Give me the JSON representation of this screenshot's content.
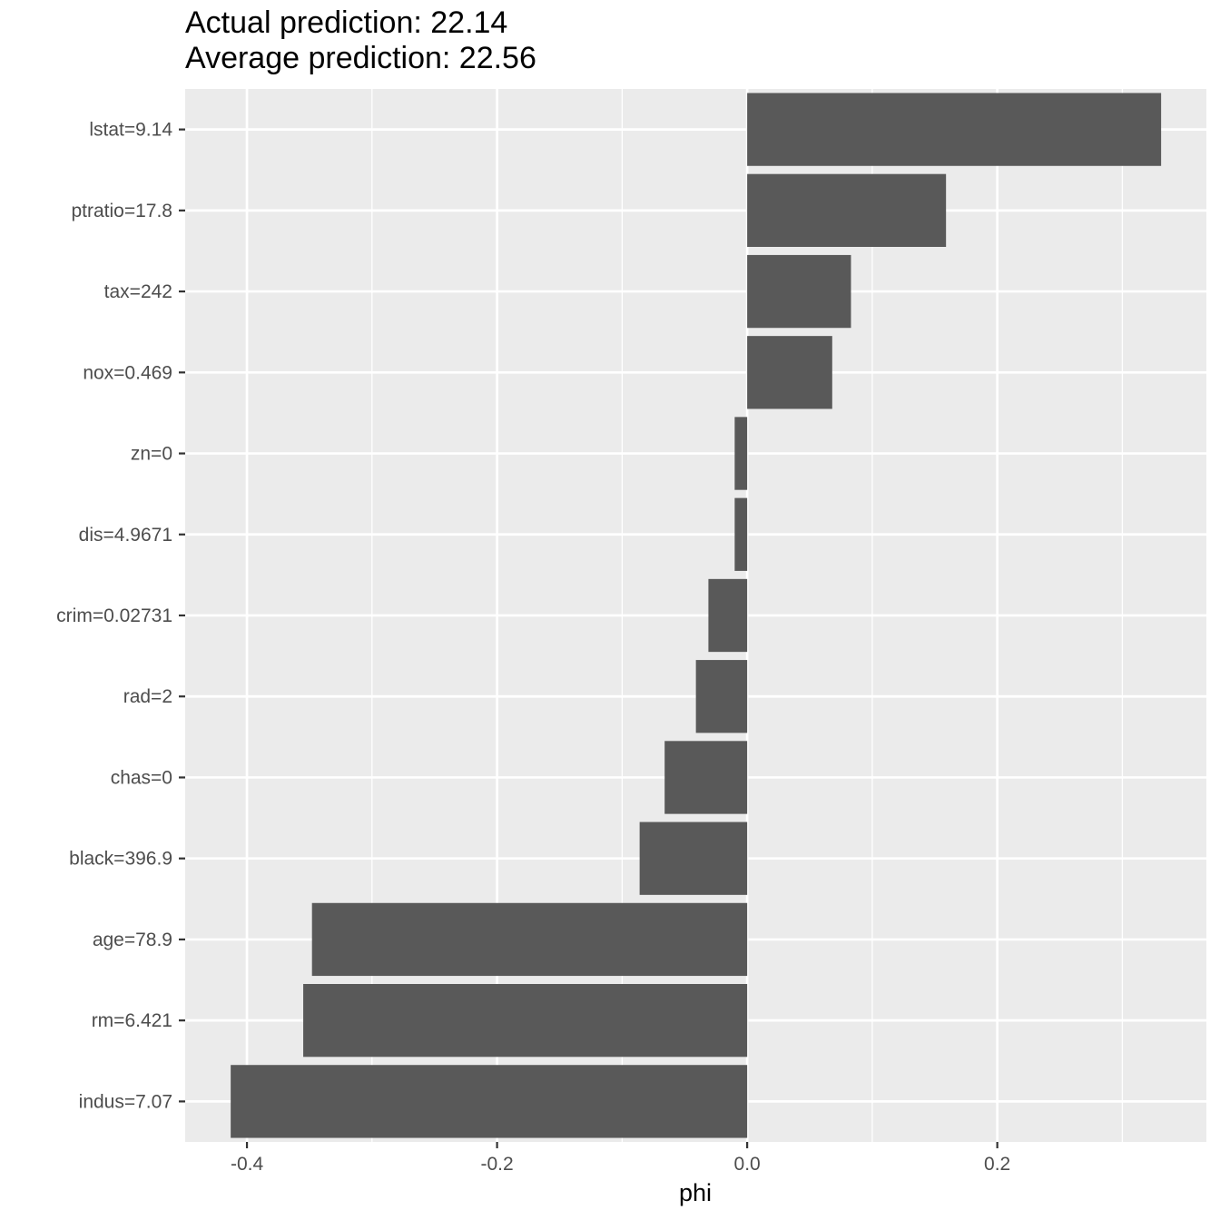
{
  "chart_data": {
    "type": "bar",
    "orientation": "horizontal",
    "title": "Actual prediction: 22.14",
    "subtitle": "Average prediction: 22.56",
    "xlabel": "phi",
    "ylabel": "",
    "xlim": [
      -0.4494,
      0.3672
    ],
    "xticks": [
      -0.4,
      -0.2,
      0.0,
      0.2
    ],
    "xtick_labels": [
      "-0.4",
      "-0.2",
      "0.0",
      "0.2"
    ],
    "grid": true,
    "legend": "none",
    "categories": [
      "lstat=9.14",
      "ptratio=17.8",
      "tax=242",
      "nox=0.469",
      "zn=0",
      "dis=4.9671",
      "crim=0.02731",
      "rad=2",
      "chas=0",
      "black=396.9",
      "age=78.9",
      "rm=6.421",
      "indus=7.07"
    ],
    "values": [
      0.331,
      0.159,
      0.083,
      0.068,
      -0.01,
      -0.01,
      -0.031,
      -0.041,
      -0.066,
      -0.086,
      -0.348,
      -0.355,
      -0.413
    ],
    "colors": {
      "bar": "#595959",
      "panel": "#ebebeb",
      "grid": "#ffffff",
      "tick_text": "#4d4d4d",
      "tick_mark": "#333333"
    }
  }
}
